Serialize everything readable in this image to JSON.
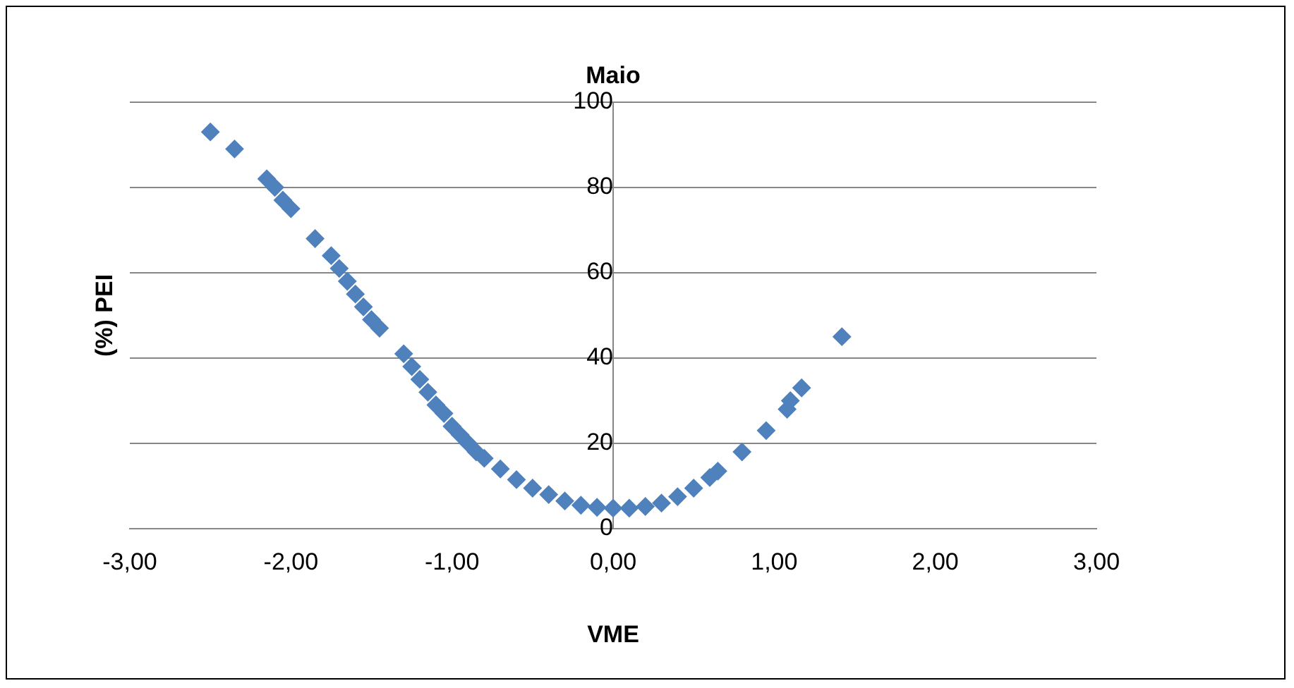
{
  "chart_data": {
    "type": "scatter",
    "title": "Maio",
    "xlabel": "VME",
    "ylabel": "(%) PEI",
    "x": [
      -2.5,
      -2.35,
      -2.15,
      -2.1,
      -2.05,
      -2.0,
      -1.85,
      -1.75,
      -1.7,
      -1.65,
      -1.6,
      -1.55,
      -1.5,
      -1.45,
      -1.3,
      -1.25,
      -1.2,
      -1.15,
      -1.1,
      -1.05,
      -1.0,
      -0.95,
      -0.9,
      -0.85,
      -0.8,
      -0.7,
      -0.6,
      -0.5,
      -0.4,
      -0.3,
      -0.2,
      -0.1,
      0,
      0.1,
      0.2,
      0.3,
      0.4,
      0.5,
      0.6,
      0.65,
      0.8,
      0.95,
      1.08,
      1.1,
      1.17,
      1.42
    ],
    "series": [
      {
        "color": "#4f81bd",
        "values": [
          93,
          89,
          82,
          80,
          77,
          75,
          68,
          64,
          61,
          58,
          55,
          52,
          49,
          47,
          41,
          38,
          35,
          32,
          29,
          27,
          24,
          22,
          20,
          18,
          16.5,
          14,
          11.5,
          9.5,
          8,
          6.5,
          5.5,
          5,
          4.8,
          4.8,
          5.2,
          6,
          7.5,
          9.5,
          12,
          13.5,
          18,
          23,
          28,
          30,
          33,
          45
        ]
      }
    ],
    "xlim": [
      -3,
      3
    ],
    "xticks": [
      {
        "value": -3,
        "label": "-3,00"
      },
      {
        "value": -2,
        "label": "-2,00"
      },
      {
        "value": -1,
        "label": "-1,00"
      },
      {
        "value": 0,
        "label": "0,00"
      },
      {
        "value": 1,
        "label": "1,00"
      },
      {
        "value": 2,
        "label": "2,00"
      },
      {
        "value": 3,
        "label": "3,00"
      }
    ],
    "ylim": [
      0,
      100
    ],
    "yticks": [
      0,
      20,
      40,
      60,
      80,
      100
    ],
    "grid": "y",
    "legend": false,
    "marker": "diamond"
  }
}
